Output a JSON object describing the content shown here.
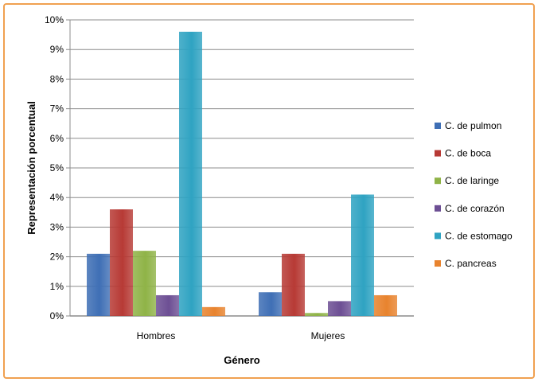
{
  "chart_data": {
    "type": "bar",
    "categories": [
      "Hombres",
      "Mujeres"
    ],
    "series": [
      {
        "name": "C. de pulmon",
        "values": [
          2.1,
          0.8
        ],
        "color": "#3f6fb5"
      },
      {
        "name": "C. de boca",
        "values": [
          3.6,
          2.1
        ],
        "color": "#b73a35"
      },
      {
        "name": "C. de laringe",
        "values": [
          2.2,
          0.1
        ],
        "color": "#8fb347"
      },
      {
        "name": "C. de corazón",
        "values": [
          0.7,
          0.5
        ],
        "color": "#6d4f94"
      },
      {
        "name": "C. de estomago",
        "values": [
          9.6,
          4.1
        ],
        "color": "#2fa3c2"
      },
      {
        "name": "C. pancreas",
        "values": [
          0.3,
          0.7
        ],
        "color": "#e8832e"
      }
    ],
    "xlabel": "Género",
    "ylabel": "Representación porcentual",
    "ylim": [
      0,
      10
    ],
    "yticks": [
      "0%",
      "1%",
      "2%",
      "3%",
      "4%",
      "5%",
      "6%",
      "7%",
      "8%",
      "9%",
      "10%"
    ],
    "grid": true,
    "legend_position": "right"
  },
  "colors": {
    "border": "#f0a050",
    "gridline": "#8c8c8c"
  }
}
